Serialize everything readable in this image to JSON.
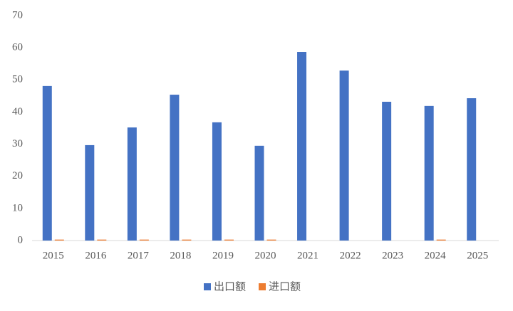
{
  "chart_data": {
    "type": "bar",
    "categories": [
      "2015",
      "2016",
      "2017",
      "2018",
      "2019",
      "2020",
      "2021",
      "2022",
      "2023",
      "2024",
      "2025"
    ],
    "series": [
      {
        "name": "出口额",
        "color": "#4472c4",
        "values": [
          48.1,
          29.7,
          35.2,
          45.4,
          36.8,
          29.5,
          58.7,
          52.9,
          43.2,
          41.9,
          44.3
        ]
      },
      {
        "name": "进口额",
        "color": "#ed7d31",
        "values": [
          0.3,
          0.3,
          0.3,
          0.3,
          0.3,
          0.3,
          0,
          0,
          0,
          0.3,
          0
        ]
      }
    ],
    "ylim": [
      0,
      70
    ],
    "yticks": [
      0,
      10,
      20,
      30,
      40,
      50,
      60,
      70
    ],
    "grid": false
  }
}
